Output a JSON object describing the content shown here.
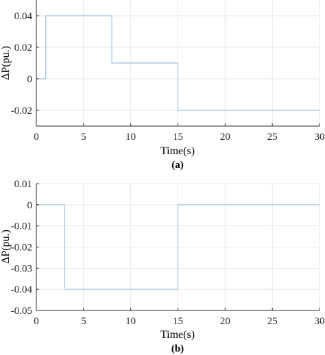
{
  "figure": {
    "background": "#ffffff",
    "line_color": "#a9cce6",
    "grid_color": "#e6e6e6",
    "axis_color": "#262626"
  },
  "chart_data": [
    {
      "type": "line",
      "panel_label": "(a)",
      "title": "",
      "xlabel": "Time(s)",
      "ylabel": "ΔP(pu.)",
      "xlim": [
        0,
        30
      ],
      "ylim": [
        -0.03,
        0.05
      ],
      "xticks": [
        0,
        5,
        10,
        15,
        20,
        25,
        30
      ],
      "xtick_labels": [
        "0",
        "5",
        "10",
        "15",
        "20",
        "25",
        "30"
      ],
      "yticks": [
        -0.02,
        0,
        0.02,
        0.04
      ],
      "ytick_labels": [
        "-0.02",
        "0",
        "0.02",
        "0.04"
      ],
      "grid": true,
      "series": [
        {
          "x": [
            0,
            1,
            1,
            8,
            8,
            15,
            15,
            30
          ],
          "y": [
            0,
            0,
            0.04,
            0.04,
            0.01,
            0.01,
            -0.02,
            -0.02
          ]
        }
      ]
    },
    {
      "type": "line",
      "panel_label": "(b)",
      "title": "",
      "xlabel": "Time(s)",
      "ylabel": "ΔP(pu.)",
      "xlim": [
        0,
        30
      ],
      "ylim": [
        -0.05,
        0.01
      ],
      "xticks": [
        0,
        5,
        10,
        15,
        20,
        25,
        30
      ],
      "xtick_labels": [
        "0",
        "5",
        "10",
        "15",
        "20",
        "25",
        "30"
      ],
      "yticks": [
        -0.05,
        -0.04,
        -0.03,
        -0.02,
        -0.01,
        0,
        0.01
      ],
      "ytick_labels": [
        "-0.05",
        "-0.04",
        "-0.03",
        "-0.02",
        "-0.01",
        "0",
        "0.01"
      ],
      "grid": true,
      "series": [
        {
          "x": [
            0,
            3,
            3,
            15,
            15,
            30
          ],
          "y": [
            0,
            0,
            -0.04,
            -0.04,
            0,
            0
          ]
        }
      ]
    }
  ]
}
